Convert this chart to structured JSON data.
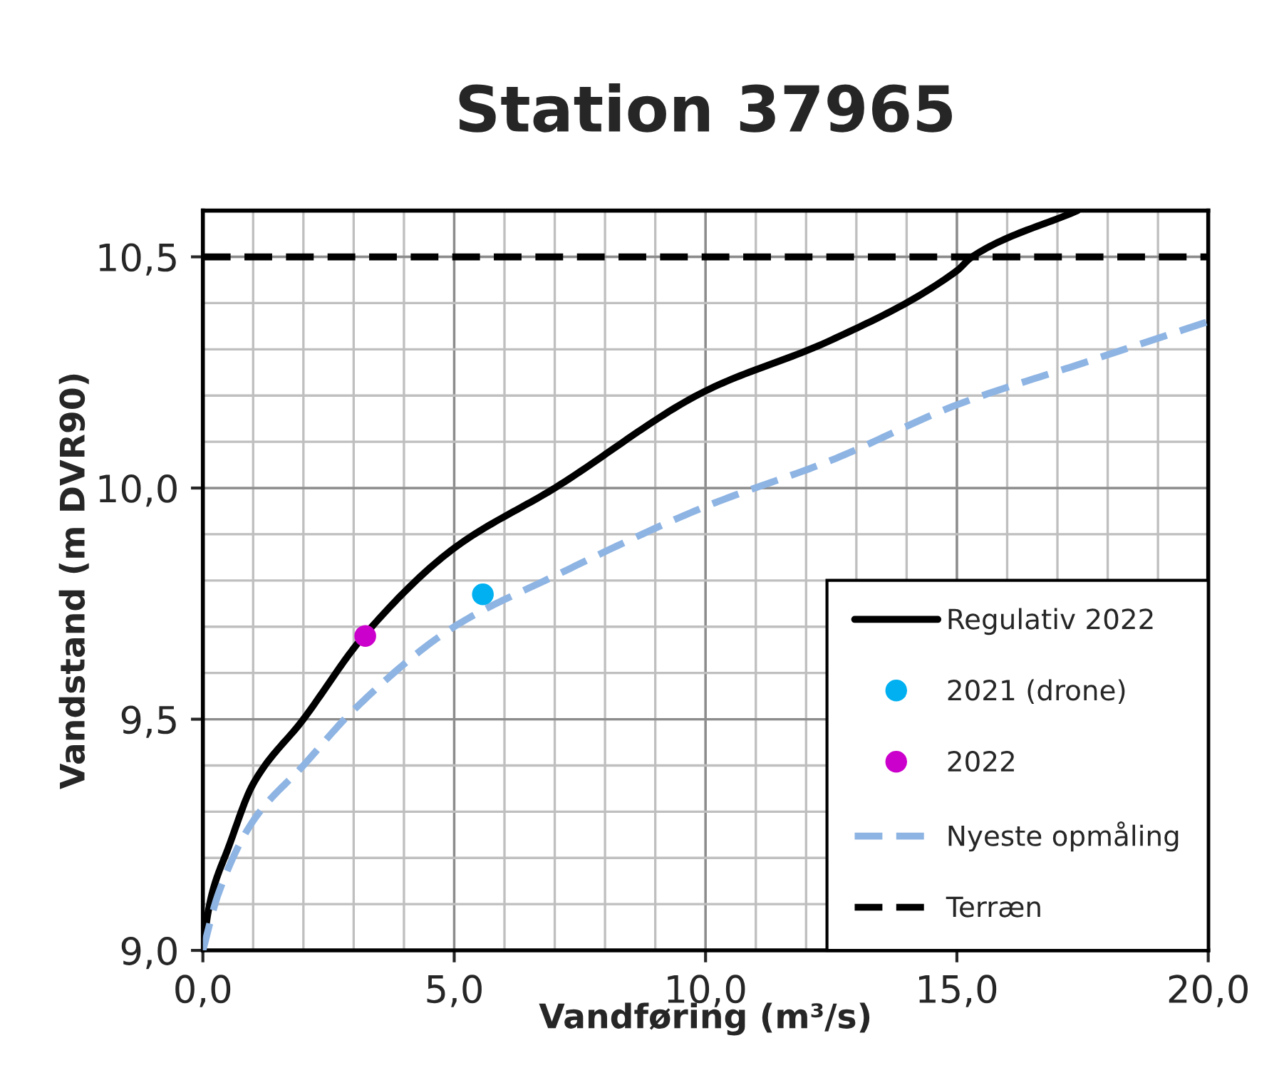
{
  "chart_data": {
    "type": "line",
    "title": "Station 37965",
    "xlabel": "Vandføring (m³/s)",
    "ylabel": "Vandstand (m DVR90)",
    "xlim": [
      0,
      20
    ],
    "ylim": [
      9.0,
      10.6
    ],
    "xticks": [
      {
        "value": 0,
        "label": "0,0"
      },
      {
        "value": 5,
        "label": "5,0"
      },
      {
        "value": 10,
        "label": "10,0"
      },
      {
        "value": 15,
        "label": "15,0"
      },
      {
        "value": 20,
        "label": "20,0"
      }
    ],
    "yticks": [
      {
        "value": 9.0,
        "label": "9,0"
      },
      {
        "value": 9.5,
        "label": "9,5"
      },
      {
        "value": 10.0,
        "label": "10,0"
      },
      {
        "value": 10.5,
        "label": "10,5"
      }
    ],
    "grid": true,
    "legend": "bottom right",
    "series": [
      {
        "name": "Regulativ 2022",
        "color": "#000000",
        "line_style": "solid",
        "marker": "none",
        "x": [
          0,
          0.1,
          0.2,
          0.5,
          1,
          2,
          3.2,
          5,
          7,
          10,
          12.5,
          15,
          15.3,
          17.4
        ],
        "values": [
          9.0,
          9.08,
          9.13,
          9.22,
          9.36,
          9.5,
          9.68,
          9.87,
          10.0,
          10.21,
          10.32,
          10.47,
          10.5,
          10.6
        ]
      },
      {
        "name": "2021 (drone)",
        "type": "scatter",
        "color": "#00b0f0",
        "marker": "circle",
        "x": [
          5.57
        ],
        "values": [
          9.77
        ]
      },
      {
        "name": "2022",
        "type": "scatter",
        "color": "#cc00cc",
        "marker": "circle",
        "x": [
          3.23
        ],
        "values": [
          9.68
        ]
      },
      {
        "name": "Nyeste opmåling",
        "color": "#8eb4e3",
        "line_style": "dashed",
        "marker": "none",
        "x": [
          0,
          0.3,
          1,
          2,
          3,
          5,
          7,
          10,
          12.5,
          15,
          17.5,
          20
        ],
        "values": [
          9.0,
          9.12,
          9.28,
          9.4,
          9.52,
          9.7,
          9.81,
          9.96,
          10.06,
          10.18,
          10.27,
          10.36
        ]
      },
      {
        "name": "Terræn",
        "color": "#000000",
        "line_style": "dashed",
        "marker": "none",
        "x": [
          0,
          20
        ],
        "values": [
          10.5,
          10.5
        ]
      }
    ]
  }
}
